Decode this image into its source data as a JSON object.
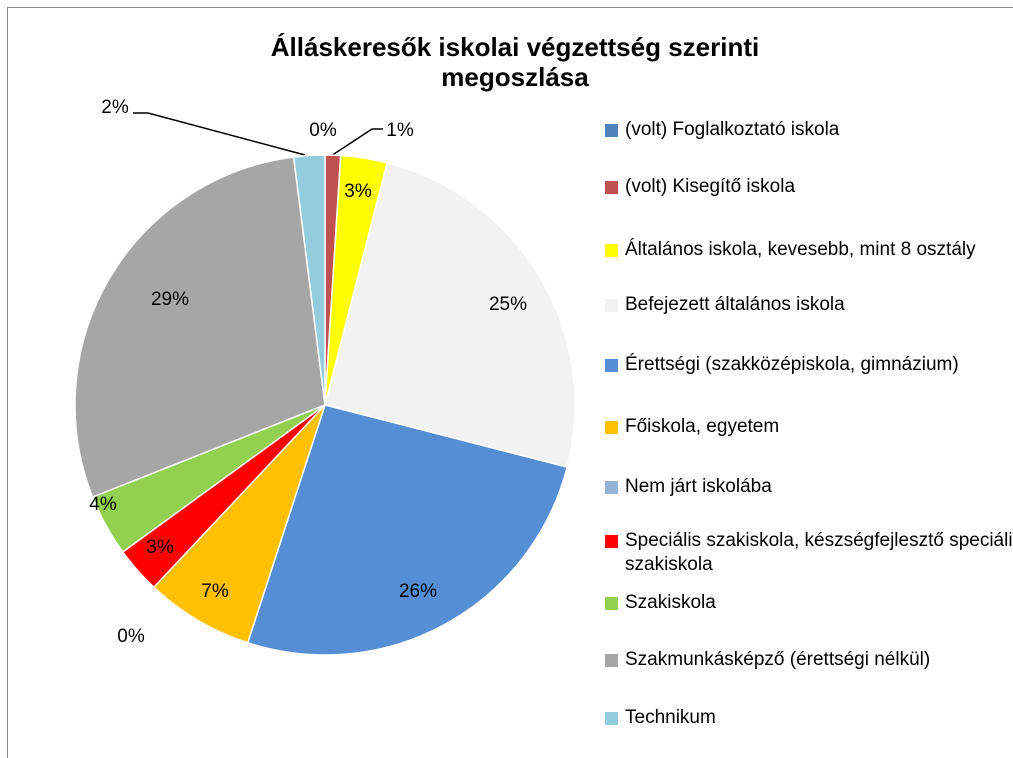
{
  "chart_data": {
    "type": "pie",
    "title": "Álláskeresők iskolai végzettség szerinti megoszlása",
    "categories": [
      "(volt) Foglalkoztató iskola",
      "(volt) Kisegítő iskola",
      "Általános iskola, kevesebb, mint 8 osztály",
      "Befejezett általános iskola",
      "Érettségi (szakközépiskola, gimnázium)",
      "Főiskola, egyetem",
      "Nem járt iskolába",
      "Speciális szakiskola, készségfejlesztő speciális szakiskola",
      "Szakiskola",
      "Szakmunkásképző (érettségi nélkül)",
      "Technikum"
    ],
    "values": [
      0,
      1,
      3,
      25,
      26,
      7,
      0,
      3,
      4,
      29,
      2
    ],
    "value_labels": [
      "0%",
      "1%",
      "3%",
      "25%",
      "26%",
      "7%",
      "0%",
      "3%",
      "4%",
      "29%",
      "2%"
    ],
    "colors": [
      "#4f81bd",
      "#c0504d",
      "#ffff00",
      "#f2f2f2",
      "#558ed5",
      "#ffc000",
      "#95b3d7",
      "#ff0000",
      "#92d050",
      "#a6a6a6",
      "#93cddd"
    ],
    "legend": "right"
  }
}
